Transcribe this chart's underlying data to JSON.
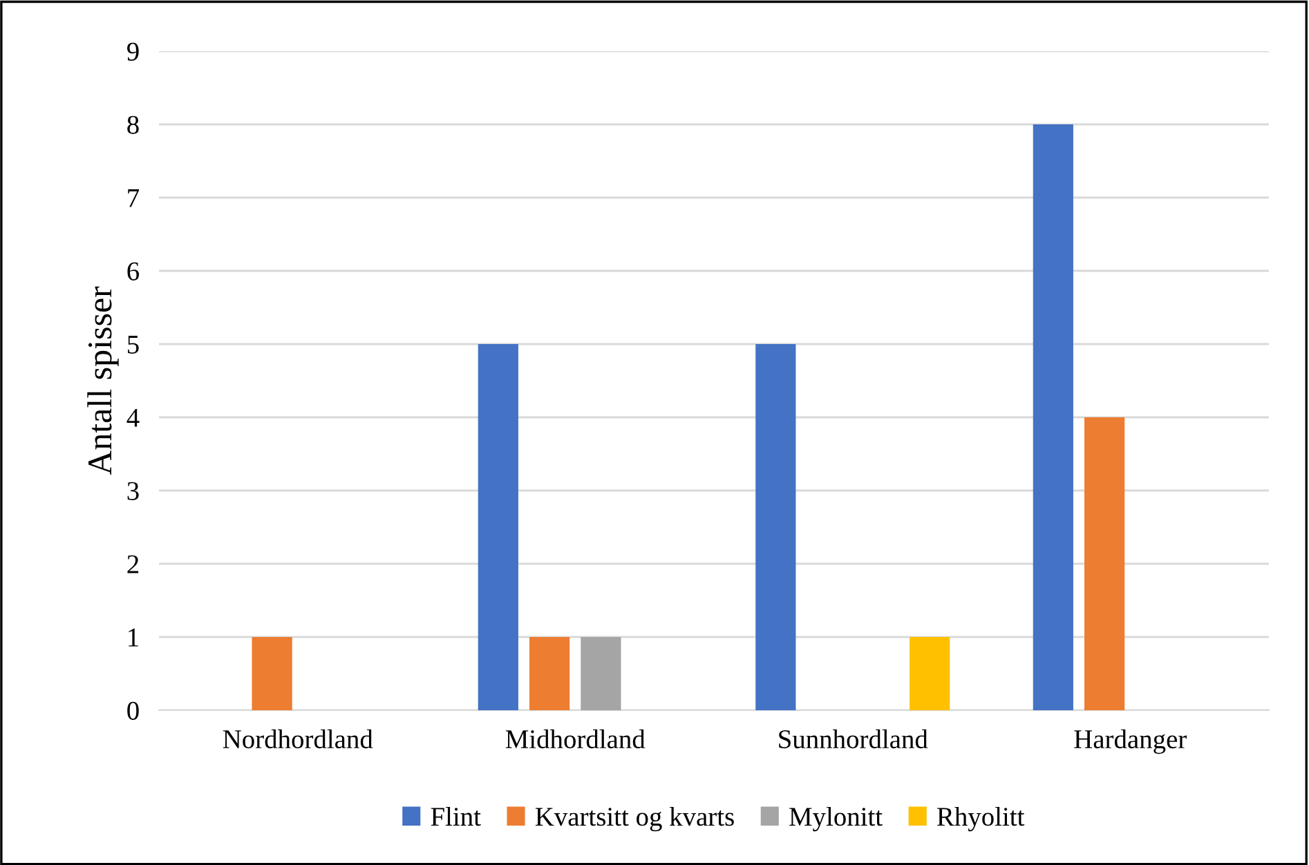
{
  "chart_data": {
    "type": "bar",
    "ylabel": "Antall spisser",
    "categories": [
      "Nordhordland",
      "Midhordland",
      "Sunnhordland",
      "Hardanger"
    ],
    "series": [
      {
        "name": "Flint",
        "color": "#4472c4",
        "values": [
          0,
          5,
          5,
          8
        ]
      },
      {
        "name": "Kvartsitt og kvarts",
        "color": "#ed7d31",
        "values": [
          1,
          1,
          0,
          4
        ]
      },
      {
        "name": "Mylonitt",
        "color": "#a5a5a5",
        "values": [
          0,
          1,
          0,
          0
        ]
      },
      {
        "name": "Rhyolitt",
        "color": "#ffc000",
        "values": [
          0,
          0,
          1,
          0
        ]
      }
    ],
    "ylim": [
      0,
      9
    ],
    "yticks": [
      0,
      1,
      2,
      3,
      4,
      5,
      6,
      7,
      8,
      9
    ],
    "grid": "y",
    "legend": "bottom"
  }
}
